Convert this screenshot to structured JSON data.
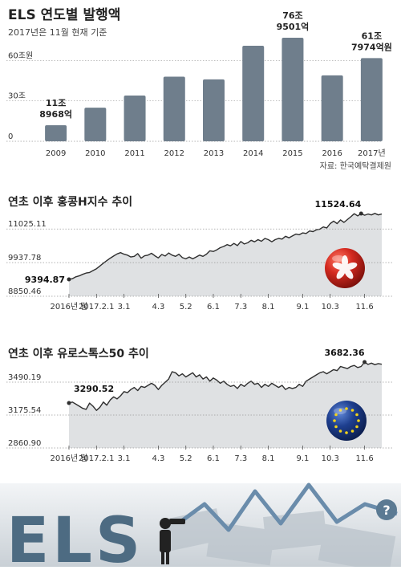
{
  "colors": {
    "bar": "#6f7e8c",
    "line": "#2f2f2f",
    "area": "#dfe1e3",
    "text": "#333333",
    "grid": "#9a9a9a",
    "hk_flag": "#d42a20",
    "eu_flag": "#1e3f8f",
    "banner_dark": "#2e3a45",
    "banner_letters": "#4d6b82"
  },
  "source_note": "자료: 한국예탁결제원",
  "banner": {
    "text": "ELS",
    "icon": "question-icon",
    "icon_text": "?"
  },
  "chart_data": [
    {
      "type": "bar",
      "title": "ELS 연도별 발행액",
      "subtitle": "2017년은 11월 현재 기준",
      "categories": [
        "2009",
        "2010",
        "2011",
        "2012",
        "2013",
        "2014",
        "2015",
        "2016",
        "2017년"
      ],
      "values": [
        11.9,
        25,
        34,
        48,
        46,
        71,
        76.95,
        49,
        61.8
      ],
      "unit": "조원",
      "ylim": [
        0,
        76.95
      ],
      "yticks": [
        {
          "value": 0,
          "label": "0"
        },
        {
          "value": 30,
          "label": "30조"
        },
        {
          "value": 60,
          "label": "60조원"
        }
      ],
      "grid": false,
      "annotations": [
        {
          "index": 0,
          "lines": [
            "11조",
            "8968억"
          ]
        },
        {
          "index": 6,
          "lines": [
            "76조",
            "9501억"
          ]
        },
        {
          "index": 8,
          "lines": [
            "61조",
            "7974억원"
          ]
        }
      ]
    },
    {
      "type": "area",
      "title": "연초 이후 홍콩H지수 추이",
      "series": [
        {
          "name": "홍콩H지수",
          "values": [
            9394.87,
            9420,
            9480,
            9510,
            9560,
            9600,
            9620,
            9680,
            9740,
            9830,
            9920,
            10000,
            10080,
            10150,
            10220,
            10260,
            10210,
            10180,
            10120,
            10140,
            10230,
            10080,
            10160,
            10180,
            10240,
            10160,
            10090,
            10200,
            10150,
            10250,
            10180,
            10140,
            10210,
            10100,
            10060,
            10120,
            10060,
            10120,
            10180,
            10140,
            10210,
            10320,
            10300,
            10350,
            10420,
            10460,
            10520,
            10480,
            10560,
            10490,
            10620,
            10540,
            10580,
            10660,
            10610,
            10680,
            10630,
            10720,
            10680,
            10610,
            10680,
            10720,
            10700,
            10790,
            10740,
            10800,
            10860,
            10840,
            10900,
            10880,
            10960,
            10940,
            11000,
            11020,
            11090,
            11060,
            11200,
            11280,
            11200,
            11320,
            11240,
            11330,
            11420,
            11520,
            11450,
            11524.64,
            11470,
            11510,
            11480,
            11530,
            11480,
            11510
          ]
        }
      ],
      "ylim": [
        8850.46,
        11524.64
      ],
      "yticks": [
        11025.11,
        9937.78,
        8850.46
      ],
      "ytick_labels": [
        "11025.11",
        "9937.78",
        "8850.46"
      ],
      "xticks": [
        {
          "index": 0,
          "label": "2016년 말"
        },
        {
          "index": 8,
          "label": "2017.2.1"
        },
        {
          "index": 16,
          "label": "3.1"
        },
        {
          "index": 26,
          "label": "4.3"
        },
        {
          "index": 34,
          "label": "5.2"
        },
        {
          "index": 42,
          "label": "6.1"
        },
        {
          "index": 50,
          "label": "7.3"
        },
        {
          "index": 58,
          "label": "8.1"
        },
        {
          "index": 68,
          "label": "9.1"
        },
        {
          "index": 76,
          "label": "10.3"
        },
        {
          "index": 86,
          "label": "11.6"
        }
      ],
      "annotations": [
        {
          "index": 0,
          "text": "9394.87",
          "position": "left"
        },
        {
          "index": 85,
          "text": "11524.64",
          "position": "above"
        }
      ],
      "grid": false,
      "icon": "hong-kong-flag-icon"
    },
    {
      "type": "area",
      "title": "연초 이후 유로스톡스50 추이",
      "series": [
        {
          "name": "유로스톡스50",
          "values": [
            3290.52,
            3300,
            3280,
            3260,
            3240,
            3230,
            3290,
            3260,
            3220,
            3250,
            3300,
            3270,
            3320,
            3350,
            3330,
            3360,
            3400,
            3390,
            3420,
            3440,
            3410,
            3450,
            3440,
            3460,
            3480,
            3460,
            3420,
            3460,
            3490,
            3520,
            3590,
            3580,
            3550,
            3570,
            3540,
            3560,
            3580,
            3540,
            3560,
            3520,
            3540,
            3500,
            3530,
            3510,
            3480,
            3500,
            3470,
            3450,
            3460,
            3430,
            3470,
            3450,
            3480,
            3500,
            3470,
            3480,
            3440,
            3470,
            3450,
            3480,
            3460,
            3440,
            3460,
            3420,
            3440,
            3430,
            3440,
            3470,
            3450,
            3500,
            3520,
            3540,
            3560,
            3580,
            3590,
            3570,
            3590,
            3610,
            3600,
            3640,
            3630,
            3620,
            3640,
            3650,
            3630,
            3640,
            3682.36,
            3660,
            3672,
            3658,
            3668,
            3662
          ]
        }
      ],
      "ylim": [
        2860.9,
        3682.36
      ],
      "yticks": [
        3490.19,
        3175.54,
        2860.9
      ],
      "ytick_labels": [
        "3490.19",
        "3175.54",
        "2860.90"
      ],
      "xticks": [
        {
          "index": 0,
          "label": "2016년 말"
        },
        {
          "index": 8,
          "label": "2017.2.1"
        },
        {
          "index": 16,
          "label": "3.1"
        },
        {
          "index": 26,
          "label": "4.3"
        },
        {
          "index": 34,
          "label": "5.2"
        },
        {
          "index": 42,
          "label": "6.1"
        },
        {
          "index": 50,
          "label": "7.3"
        },
        {
          "index": 58,
          "label": "8.1"
        },
        {
          "index": 68,
          "label": "9.1"
        },
        {
          "index": 76,
          "label": "10.3"
        },
        {
          "index": 86,
          "label": "11.6"
        }
      ],
      "annotations": [
        {
          "index": 0,
          "text": "3290.52",
          "position": "above-right"
        },
        {
          "index": 86,
          "text": "3682.36",
          "position": "above"
        }
      ],
      "grid": false,
      "icon": "eu-flag-icon"
    }
  ]
}
